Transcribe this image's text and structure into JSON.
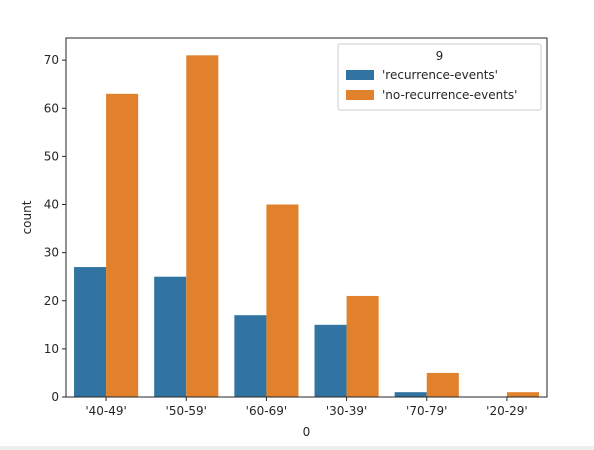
{
  "chart_data": {
    "type": "bar",
    "categories": [
      "'40-49'",
      "'50-59'",
      "'60-69'",
      "'30-39'",
      "'70-79'",
      "'20-29'"
    ],
    "series": [
      {
        "name": "'recurrence-events'",
        "values": [
          27,
          25,
          17,
          15,
          1,
          0
        ],
        "color": "#3274a1"
      },
      {
        "name": "'no-recurrence-events'",
        "values": [
          63,
          71,
          40,
          21,
          5,
          1
        ],
        "color": "#e1812c"
      }
    ],
    "xlabel": "0",
    "ylabel": "count",
    "ylim": [
      0,
      74.6
    ],
    "yticks": [
      0,
      10,
      20,
      30,
      40,
      50,
      60,
      70
    ],
    "legend": {
      "title": "9",
      "placement": "top-right"
    },
    "grid": false
  }
}
